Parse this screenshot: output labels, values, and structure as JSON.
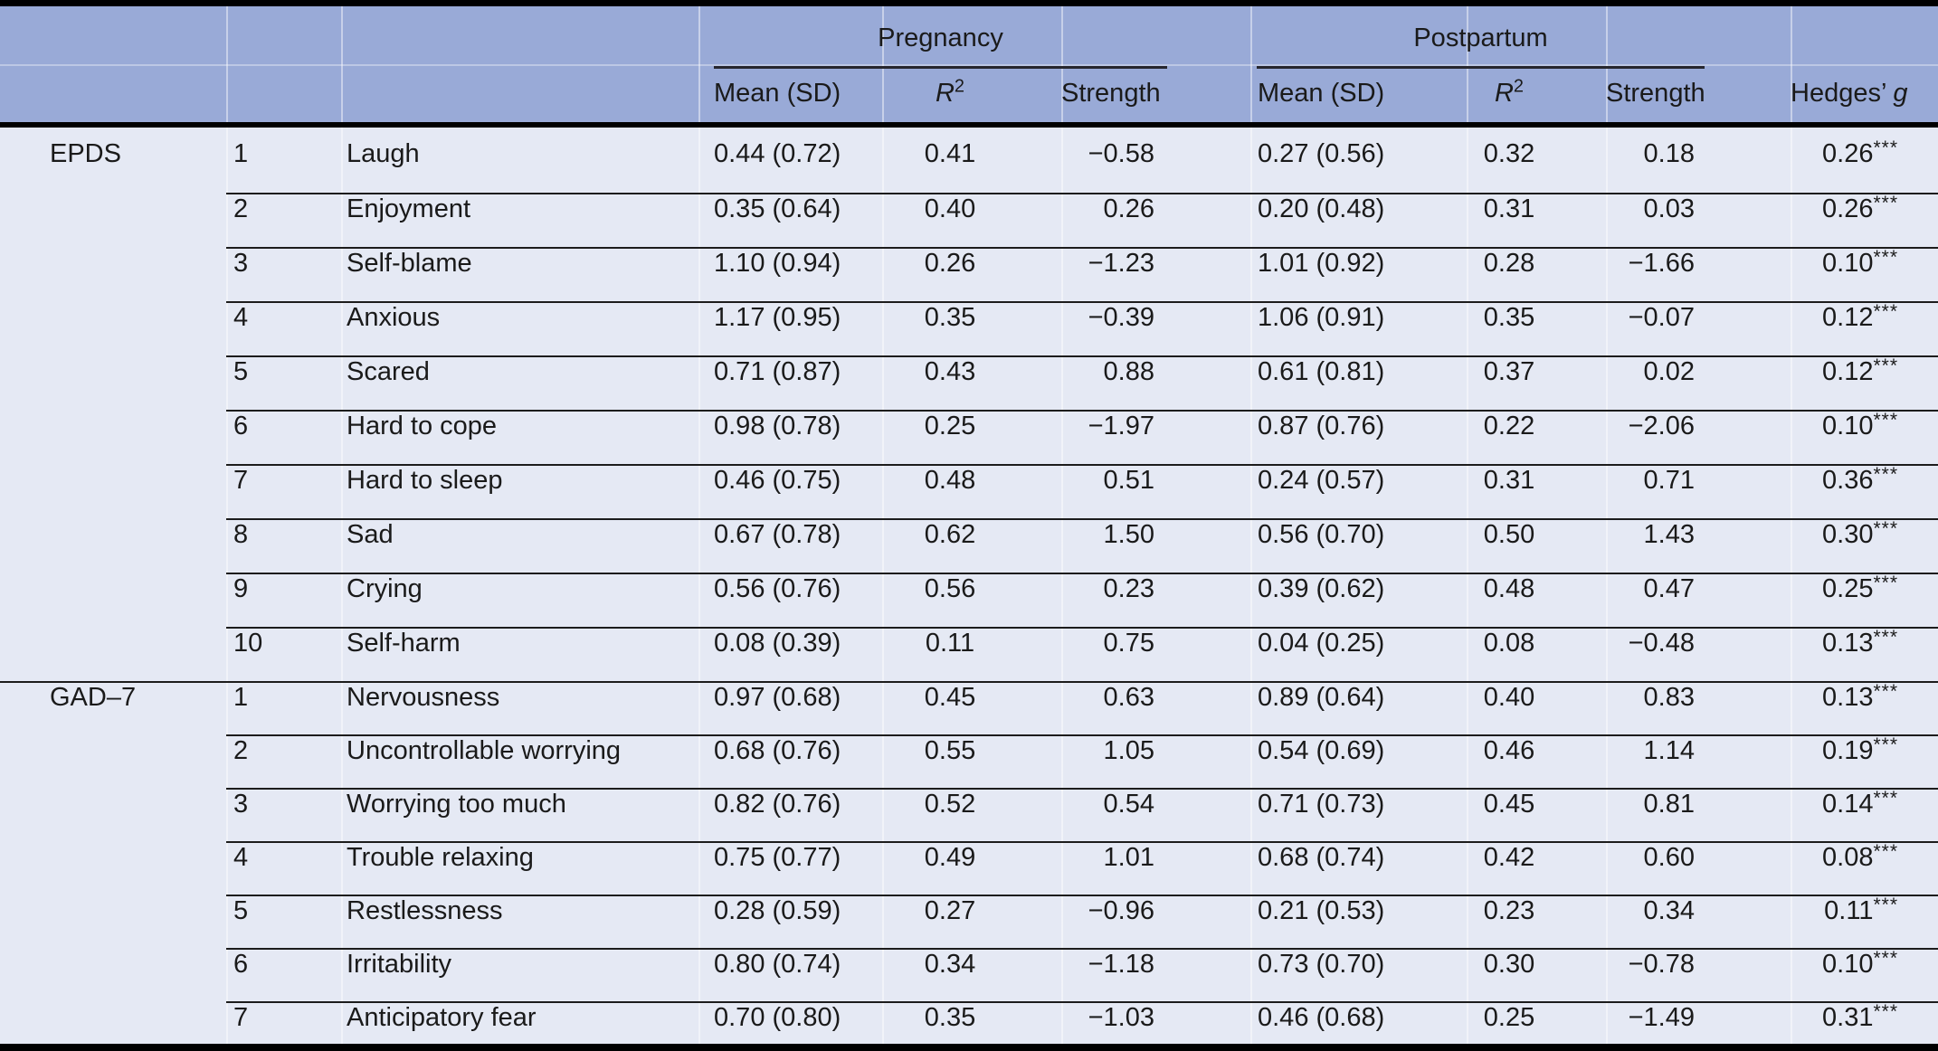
{
  "table": {
    "colors": {
      "header_bg": "#99aad7",
      "body_bg": "#e5e9f4",
      "rule_dark": "#000000",
      "row_line": "#1c1c1c"
    },
    "col_groups": [
      {
        "label": "Pregnancy"
      },
      {
        "label": "Postpartum"
      }
    ],
    "columns": {
      "mean": "Mean (SD)",
      "r2_base": "R",
      "r2_sup": "2",
      "strength": "Strength",
      "hedges_prefix": "Hedges’ ",
      "hedges_italic": "g"
    },
    "sections": [
      {
        "label": "EPDS",
        "rows": [
          {
            "num": "1",
            "item": "Laugh",
            "preg": {
              "mean": "0.44 (0.72)",
              "r2": "0.41",
              "strength": "−0.58"
            },
            "post": {
              "mean": "0.27 (0.56)",
              "r2": "0.32",
              "strength": "0.18"
            },
            "hedges": "0.26",
            "stars": "***"
          },
          {
            "num": "2",
            "item": "Enjoyment",
            "preg": {
              "mean": "0.35 (0.64)",
              "r2": "0.40",
              "strength": "0.26"
            },
            "post": {
              "mean": "0.20 (0.48)",
              "r2": "0.31",
              "strength": "0.03"
            },
            "hedges": "0.26",
            "stars": "***"
          },
          {
            "num": "3",
            "item": "Self-blame",
            "preg": {
              "mean": "1.10 (0.94)",
              "r2": "0.26",
              "strength": "−1.23"
            },
            "post": {
              "mean": "1.01 (0.92)",
              "r2": "0.28",
              "strength": "−1.66"
            },
            "hedges": "0.10",
            "stars": "***"
          },
          {
            "num": "4",
            "item": "Anxious",
            "preg": {
              "mean": "1.17 (0.95)",
              "r2": "0.35",
              "strength": "−0.39"
            },
            "post": {
              "mean": "1.06 (0.91)",
              "r2": "0.35",
              "strength": "−0.07"
            },
            "hedges": "0.12",
            "stars": "***"
          },
          {
            "num": "5",
            "item": "Scared",
            "preg": {
              "mean": "0.71 (0.87)",
              "r2": "0.43",
              "strength": "0.88"
            },
            "post": {
              "mean": "0.61 (0.81)",
              "r2": "0.37",
              "strength": "0.02"
            },
            "hedges": "0.12",
            "stars": "***"
          },
          {
            "num": "6",
            "item": "Hard to cope",
            "preg": {
              "mean": "0.98 (0.78)",
              "r2": "0.25",
              "strength": "−1.97"
            },
            "post": {
              "mean": "0.87 (0.76)",
              "r2": "0.22",
              "strength": "−2.06"
            },
            "hedges": "0.10",
            "stars": "***"
          },
          {
            "num": "7",
            "item": "Hard to sleep",
            "preg": {
              "mean": "0.46 (0.75)",
              "r2": "0.48",
              "strength": "0.51"
            },
            "post": {
              "mean": "0.24 (0.57)",
              "r2": "0.31",
              "strength": "0.71"
            },
            "hedges": "0.36",
            "stars": "***"
          },
          {
            "num": "8",
            "item": "Sad",
            "preg": {
              "mean": "0.67 (0.78)",
              "r2": "0.62",
              "strength": "1.50"
            },
            "post": {
              "mean": "0.56 (0.70)",
              "r2": "0.50",
              "strength": "1.43"
            },
            "hedges": "0.30",
            "stars": "***"
          },
          {
            "num": "9",
            "item": "Crying",
            "preg": {
              "mean": "0.56 (0.76)",
              "r2": "0.56",
              "strength": "0.23"
            },
            "post": {
              "mean": "0.39 (0.62)",
              "r2": "0.48",
              "strength": "0.47"
            },
            "hedges": "0.25",
            "stars": "***"
          },
          {
            "num": "10",
            "item": "Self-harm",
            "preg": {
              "mean": "0.08 (0.39)",
              "r2": "0.11",
              "strength": "0.75"
            },
            "post": {
              "mean": "0.04 (0.25)",
              "r2": "0.08",
              "strength": "−0.48"
            },
            "hedges": "0.13",
            "stars": "***"
          }
        ]
      },
      {
        "label": "GAD–7",
        "rows": [
          {
            "num": "1",
            "item": "Nervousness",
            "preg": {
              "mean": "0.97 (0.68)",
              "r2": "0.45",
              "strength": "0.63"
            },
            "post": {
              "mean": "0.89 (0.64)",
              "r2": "0.40",
              "strength": "0.83"
            },
            "hedges": "0.13",
            "stars": "***"
          },
          {
            "num": "2",
            "item": "Uncontrollable worrying",
            "preg": {
              "mean": "0.68 (0.76)",
              "r2": "0.55",
              "strength": "1.05"
            },
            "post": {
              "mean": "0.54 (0.69)",
              "r2": "0.46",
              "strength": "1.14"
            },
            "hedges": "0.19",
            "stars": "***"
          },
          {
            "num": "3",
            "item": "Worrying too much",
            "preg": {
              "mean": "0.82 (0.76)",
              "r2": "0.52",
              "strength": "0.54"
            },
            "post": {
              "mean": "0.71 (0.73)",
              "r2": "0.45",
              "strength": "0.81"
            },
            "hedges": "0.14",
            "stars": "***"
          },
          {
            "num": "4",
            "item": "Trouble relaxing",
            "preg": {
              "mean": "0.75 (0.77)",
              "r2": "0.49",
              "strength": "1.01"
            },
            "post": {
              "mean": "0.68 (0.74)",
              "r2": "0.42",
              "strength": "0.60"
            },
            "hedges": "0.08",
            "stars": "***"
          },
          {
            "num": "5",
            "item": "Restlessness",
            "preg": {
              "mean": "0.28 (0.59)",
              "r2": "0.27",
              "strength": "−0.96"
            },
            "post": {
              "mean": "0.21 (0.53)",
              "r2": "0.23",
              "strength": "0.34"
            },
            "hedges": "0.11",
            "stars": "***"
          },
          {
            "num": "6",
            "item": "Irritability",
            "preg": {
              "mean": "0.80 (0.74)",
              "r2": "0.34",
              "strength": "−1.18"
            },
            "post": {
              "mean": "0.73 (0.70)",
              "r2": "0.30",
              "strength": "−0.78"
            },
            "hedges": "0.10",
            "stars": "***"
          },
          {
            "num": "7",
            "item": "Anticipatory fear",
            "preg": {
              "mean": "0.70 (0.80)",
              "r2": "0.35",
              "strength": "−1.03"
            },
            "post": {
              "mean": "0.46 (0.68)",
              "r2": "0.25",
              "strength": "−1.49"
            },
            "hedges": "0.31",
            "stars": "***"
          }
        ]
      }
    ]
  }
}
